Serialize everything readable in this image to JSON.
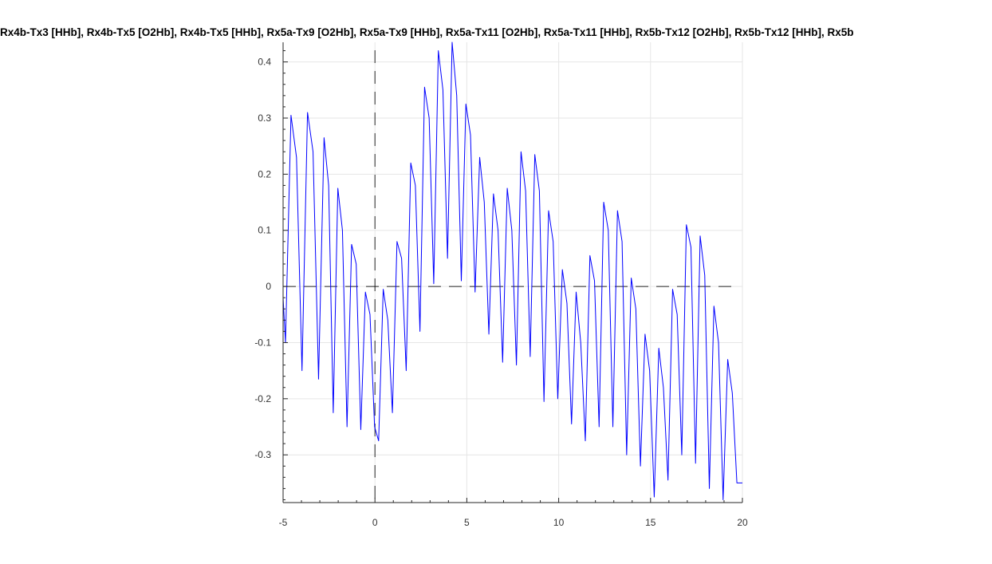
{
  "chart_data": {
    "type": "line",
    "title": "Rx4b-Tx3 [HHb], Rx4b-Tx5 [O2Hb], Rx4b-Tx5 [HHb], Rx5a-Tx9 [O2Hb], Rx5a-Tx9 [HHb], Rx5a-Tx11 [O2Hb], Rx5a-Tx11 [HHb], Rx5b-Tx12 [O2Hb], Rx5b-Tx12 [HHb], Rx5b",
    "xlabel": "",
    "ylabel": "",
    "xlim": [
      -5,
      20
    ],
    "ylim": [
      -0.385,
      0.435
    ],
    "xticks": [
      -5,
      0,
      5,
      10,
      15,
      20
    ],
    "xtick_labels": [
      "-5",
      "0",
      "5",
      "10",
      "15",
      "20"
    ],
    "yticks": [
      -0.3,
      -0.2,
      -0.1,
      0,
      0.1,
      0.2,
      0.3,
      0.4
    ],
    "ytick_labels": [
      "-0.3",
      "-0.2",
      "-0.1",
      "0",
      "0.1",
      "0.2",
      "0.3",
      "0.4"
    ],
    "grid": true,
    "reference_lines": [
      {
        "orientation": "vertical",
        "value": 0,
        "style": "dashed",
        "color": "#000000"
      },
      {
        "orientation": "horizontal",
        "value": 0,
        "style": "dashed",
        "color": "#000000",
        "x_range": [
          -5,
          19.6
        ]
      }
    ],
    "series": [
      {
        "color": "#0000ff",
        "x": [
          -5.0,
          -4.87,
          -4.57,
          -4.27,
          -3.97,
          -3.67,
          -3.37,
          -3.07,
          -2.77,
          -2.52,
          -2.27,
          -2.02,
          -1.77,
          -1.52,
          -1.27,
          -1.02,
          -0.77,
          -0.52,
          -0.27,
          -0.02,
          0.2,
          0.45,
          0.7,
          0.95,
          1.2,
          1.45,
          1.7,
          1.95,
          2.2,
          2.45,
          2.7,
          2.95,
          3.2,
          3.45,
          3.7,
          3.95,
          4.2,
          4.45,
          4.7,
          4.95,
          5.2,
          5.45,
          5.7,
          5.95,
          6.2,
          6.45,
          6.7,
          6.95,
          7.2,
          7.45,
          7.7,
          7.95,
          8.2,
          8.45,
          8.7,
          8.95,
          9.2,
          9.45,
          9.7,
          9.95,
          10.2,
          10.45,
          10.7,
          10.95,
          11.2,
          11.45,
          11.7,
          11.95,
          12.2,
          12.45,
          12.7,
          12.95,
          13.2,
          13.45,
          13.7,
          13.95,
          14.2,
          14.45,
          14.7,
          14.95,
          15.2,
          15.45,
          15.7,
          15.95,
          16.2,
          16.45,
          16.7,
          16.95,
          17.2,
          17.45,
          17.7,
          17.95,
          18.2,
          18.45,
          18.7,
          18.95,
          19.2,
          19.45,
          19.7,
          20.0
        ],
        "y": [
          -0.02,
          -0.1,
          0.305,
          0.23,
          -0.15,
          0.31,
          0.24,
          -0.165,
          0.265,
          0.18,
          -0.225,
          0.175,
          0.1,
          -0.25,
          0.075,
          0.04,
          -0.255,
          -0.01,
          -0.05,
          -0.25,
          -0.275,
          -0.005,
          -0.06,
          -0.225,
          0.08,
          0.05,
          -0.15,
          0.22,
          0.18,
          -0.08,
          0.355,
          0.3,
          0.005,
          0.42,
          0.35,
          0.05,
          0.435,
          0.34,
          0.01,
          0.325,
          0.27,
          -0.01,
          0.23,
          0.15,
          -0.085,
          0.165,
          0.1,
          -0.135,
          0.175,
          0.1,
          -0.14,
          0.24,
          0.17,
          -0.125,
          0.235,
          0.17,
          -0.205,
          0.135,
          0.08,
          -0.2,
          0.03,
          -0.03,
          -0.245,
          -0.01,
          -0.1,
          -0.275,
          0.055,
          0.01,
          -0.25,
          0.15,
          0.1,
          -0.25,
          0.135,
          0.08,
          -0.3,
          0.015,
          -0.04,
          -0.32,
          -0.085,
          -0.15,
          -0.375,
          -0.11,
          -0.18,
          -0.345,
          -0.005,
          -0.05,
          -0.3,
          0.11,
          0.07,
          -0.315,
          0.09,
          0.02,
          -0.36,
          -0.035,
          -0.1,
          -0.38,
          -0.13,
          -0.19,
          -0.35,
          -0.35
        ]
      }
    ]
  }
}
